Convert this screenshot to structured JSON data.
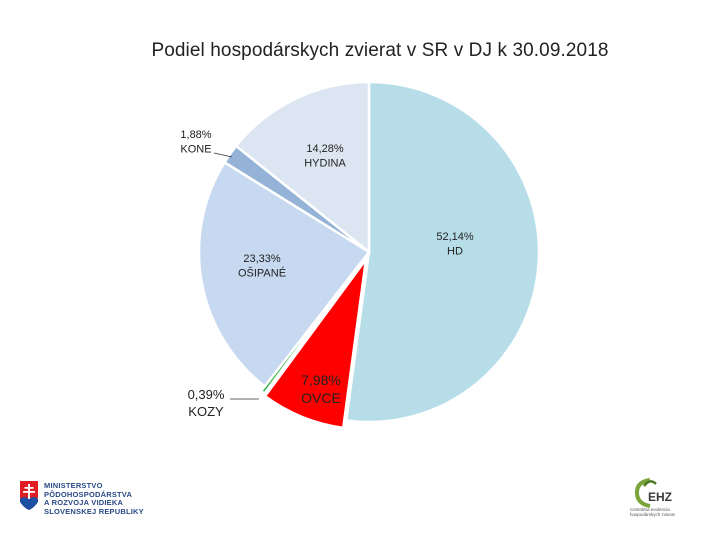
{
  "chart_data": {
    "type": "pie",
    "title": "Podiel hospodárskych zvierat v SR v DJ k 30.09.2018",
    "slices": [
      {
        "pct_label": "52,14%",
        "name": "HD",
        "value": 52.14,
        "color": "#b7dde8",
        "explode": 0
      },
      {
        "pct_label": "7,98%",
        "name": "OVCE",
        "value": 7.98,
        "color": "#ff0000",
        "explode": 8
      },
      {
        "pct_label": "0,39%",
        "name": "KOZY",
        "value": 0.39,
        "color": "#3cb44b",
        "explode": 6
      },
      {
        "pct_label": "23,33%",
        "name": "OŠIPANÉ",
        "value": 23.33,
        "color": "#c6d9f1",
        "explode": 0
      },
      {
        "pct_label": "1,88%",
        "name": "KONE",
        "value": 1.88,
        "color": "#95b3d7",
        "explode": 0
      },
      {
        "pct_label": "14,28%",
        "name": "HYDINA",
        "value": 14.28,
        "color": "#dce6f2",
        "explode": 0
      }
    ],
    "legend": "none"
  },
  "logos": {
    "ministry_lines": [
      "MINISTERSTVO",
      "PÔDOHOSPODÁRSTVA",
      "A ROZVOJA VIDIEKA",
      "SLOVENSKEJ REPUBLIKY"
    ],
    "ehz_mark": "EHZ",
    "ehz_lines": [
      "Centrálna evidencia",
      "hospodárskych zvierat"
    ]
  }
}
